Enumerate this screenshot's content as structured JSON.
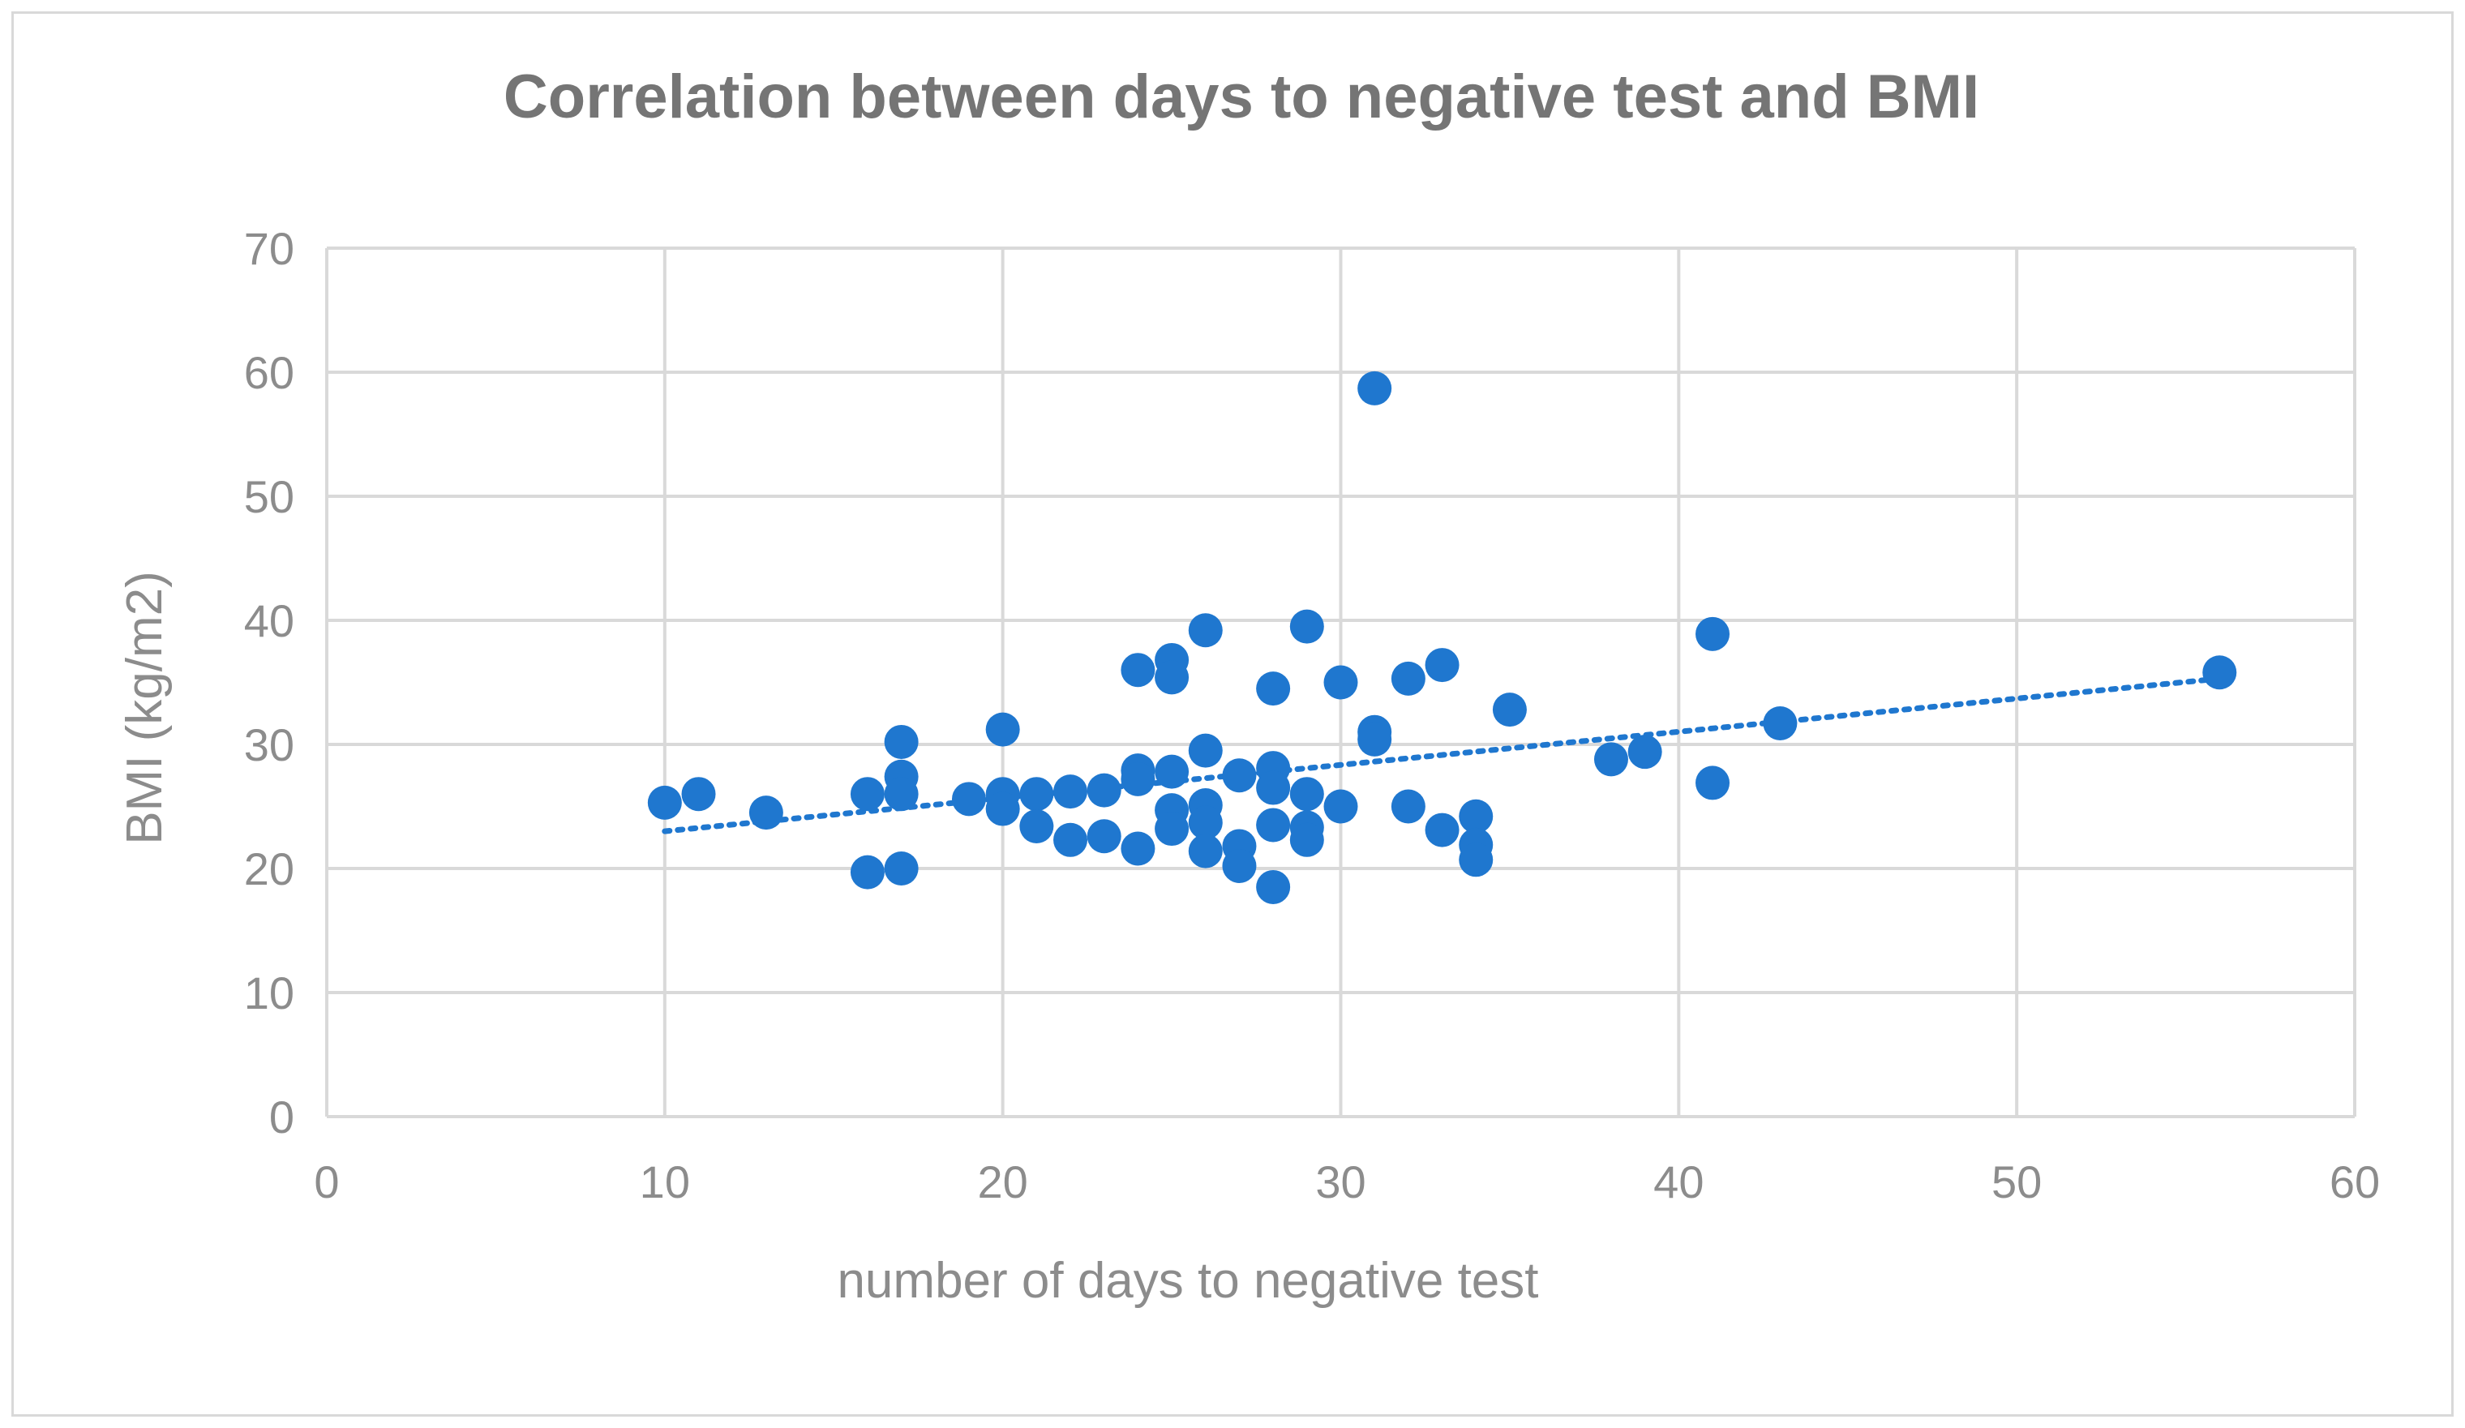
{
  "chart_data": {
    "type": "scatter",
    "title": "Correlation between days to negative test and BMI",
    "xlabel": "number of days to negative test",
    "ylabel": "BMI  (kg/m2)",
    "xlim": [
      0,
      60
    ],
    "ylim": [
      0,
      70
    ],
    "x_ticks": [
      0,
      10,
      20,
      30,
      40,
      50,
      60
    ],
    "y_ticks": [
      0,
      10,
      20,
      30,
      40,
      50,
      60,
      70
    ],
    "grid": true,
    "legend": "none",
    "colors": {
      "marker": "#1f77cf",
      "trendline": "#1f77cf",
      "grid": "#d9d9d9",
      "title": "#757575",
      "labels": "#8c8c8c"
    },
    "series": [
      {
        "name": "BMI",
        "points": [
          [
            10,
            25.3
          ],
          [
            11,
            26.0
          ],
          [
            13,
            24.5
          ],
          [
            16,
            26.0
          ],
          [
            16,
            19.7
          ],
          [
            17,
            30.2
          ],
          [
            17,
            27.4
          ],
          [
            17,
            26.0
          ],
          [
            17,
            20.0
          ],
          [
            19,
            25.6
          ],
          [
            20,
            31.2
          ],
          [
            20,
            26.0
          ],
          [
            20,
            24.8
          ],
          [
            21,
            26.0
          ],
          [
            21,
            23.4
          ],
          [
            22,
            26.2
          ],
          [
            22,
            22.3
          ],
          [
            23,
            26.3
          ],
          [
            23,
            22.6
          ],
          [
            24,
            36.0
          ],
          [
            24,
            27.9
          ],
          [
            24,
            27.2
          ],
          [
            24,
            21.6
          ],
          [
            25,
            36.8
          ],
          [
            25,
            35.4
          ],
          [
            25,
            27.8
          ],
          [
            25,
            24.7
          ],
          [
            25,
            23.2
          ],
          [
            26,
            39.2
          ],
          [
            26,
            29.5
          ],
          [
            26,
            25.1
          ],
          [
            26,
            23.7
          ],
          [
            26,
            21.4
          ],
          [
            27,
            27.5
          ],
          [
            27,
            21.8
          ],
          [
            27,
            20.2
          ],
          [
            28,
            34.5
          ],
          [
            28,
            28.1
          ],
          [
            28,
            26.5
          ],
          [
            28,
            23.5
          ],
          [
            28,
            18.5
          ],
          [
            29,
            39.5
          ],
          [
            29,
            26.0
          ],
          [
            29,
            23.3
          ],
          [
            29,
            22.3
          ],
          [
            30,
            35.0
          ],
          [
            30,
            25.0
          ],
          [
            31,
            58.7
          ],
          [
            31,
            31.0
          ],
          [
            31,
            30.4
          ],
          [
            32,
            35.3
          ],
          [
            32,
            25.0
          ],
          [
            33,
            36.4
          ],
          [
            33,
            23.1
          ],
          [
            34,
            24.2
          ],
          [
            34,
            21.9
          ],
          [
            34,
            20.7
          ],
          [
            35,
            32.8
          ],
          [
            38,
            28.8
          ],
          [
            39,
            29.4
          ],
          [
            41,
            38.9
          ],
          [
            41,
            26.9
          ],
          [
            43,
            31.7
          ],
          [
            56,
            35.8
          ]
        ]
      }
    ],
    "trendline": {
      "type": "linear",
      "style": "dotted",
      "x": [
        10,
        56
      ],
      "y": [
        23.0,
        35.3
      ]
    }
  }
}
